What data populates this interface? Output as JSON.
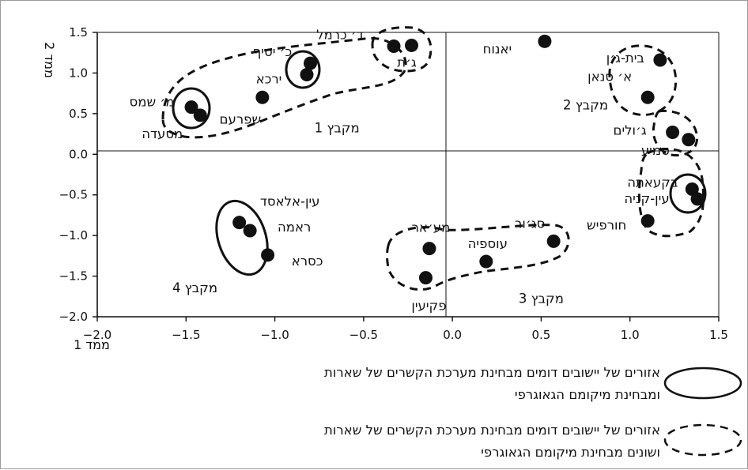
{
  "chart_data": {
    "type": "scatter",
    "xlabel": "ממד 1",
    "ylabel": "ממד 2",
    "xlim": [
      -2.0,
      1.5
    ],
    "ylim": [
      -2.0,
      1.5
    ],
    "xticks": [
      "-2.0",
      "-1.5",
      "-1.0",
      "-0.5",
      "0.0",
      "0.5",
      "1.0",
      "1.5"
    ],
    "yticks": [
      "1.5",
      "1.0",
      "0.5",
      "0.0",
      "-0.5",
      "-1.0",
      "-1.5",
      "-2.0"
    ],
    "grid": false,
    "points": [
      {
        "label": "ד׳ כרמל",
        "x": -0.33,
        "y": 1.33
      },
      {
        "label": "ג׳ת",
        "x": -0.23,
        "y": 1.34
      },
      {
        "label": "כ׳ יסיף",
        "x": -0.8,
        "y": 1.12
      },
      {
        "label": "ירכא",
        "x": -0.82,
        "y": 0.98
      },
      {
        "label": "שפרעם",
        "x": -1.07,
        "y": 0.7
      },
      {
        "label": "מ׳ שמס",
        "x": -1.47,
        "y": 0.58
      },
      {
        "label": "מסעדה",
        "x": -1.42,
        "y": 0.48
      },
      {
        "label": "יאנוח",
        "x": 0.52,
        "y": 1.39
      },
      {
        "label": "בית-ג׳ן",
        "x": 1.17,
        "y": 1.16
      },
      {
        "label": "א׳ סנאן",
        "x": 1.1,
        "y": 0.7
      },
      {
        "label": "ג׳ולים",
        "x": 1.24,
        "y": 0.27
      },
      {
        "label": "סמיע",
        "x": 1.33,
        "y": 0.18
      },
      {
        "label": "בקעאתה",
        "x": 1.35,
        "y": -0.43
      },
      {
        "label": "עין-קניה",
        "x": 1.38,
        "y": -0.55
      },
      {
        "label": "חורפיש",
        "x": 1.1,
        "y": -0.82
      },
      {
        "label": "עין-אלאסד",
        "x": -1.2,
        "y": -0.84
      },
      {
        "label": "ראמה",
        "x": -1.14,
        "y": -0.94
      },
      {
        "label": "כסרא",
        "x": -1.04,
        "y": -1.24
      },
      {
        "label": "מע׳אר",
        "x": -0.13,
        "y": -1.16
      },
      {
        "label": "פקיעין",
        "x": -0.15,
        "y": -1.52
      },
      {
        "label": "עוספיה",
        "x": 0.19,
        "y": -1.32
      },
      {
        "label": "סג׳ור",
        "x": 0.57,
        "y": -1.07
      }
    ],
    "clusters": [
      {
        "label": "מקבץ 1",
        "x": -0.65,
        "y": 0.32
      },
      {
        "label": "מקבץ 2",
        "x": 0.75,
        "y": 0.6
      },
      {
        "label": "מקבץ 3",
        "x": 0.5,
        "y": -1.78
      },
      {
        "label": "מקבץ 4",
        "x": -1.45,
        "y": -1.65
      }
    ]
  },
  "legend": {
    "solid_line1": "אזורים של יישובים דומים מבחינת מערכת הקשרים של שארות",
    "solid_line2": "ומבחינת מיקומם הגאוגרפי",
    "dashed_line1": "אזורים של יישובים דומים מבחינת מערכת הקשרים של שארות",
    "dashed_line2": "ושונים מבחינת מיקומם הגאוגרפי"
  }
}
